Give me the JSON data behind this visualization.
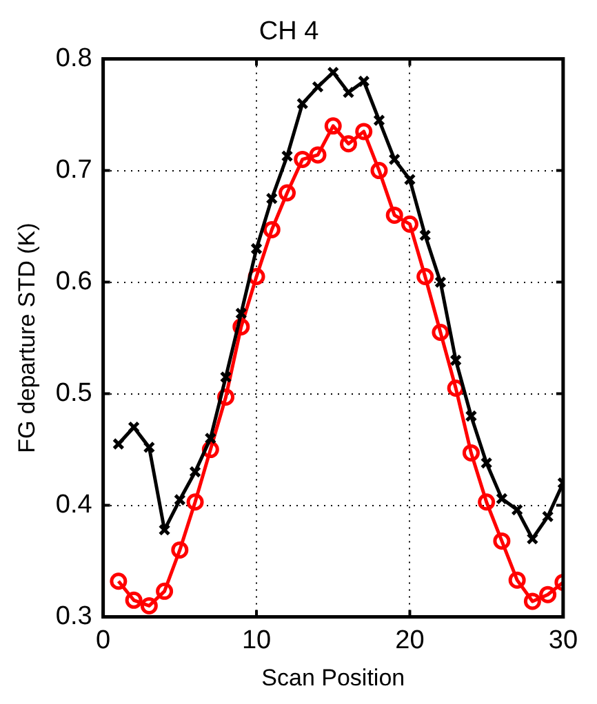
{
  "chart_data": {
    "type": "line",
    "title": "CH 4",
    "xlabel": "Scan Position",
    "ylabel": "FG departure STD (K)",
    "x": [
      1,
      2,
      3,
      4,
      5,
      6,
      7,
      8,
      9,
      10,
      11,
      12,
      13,
      14,
      15,
      16,
      17,
      18,
      19,
      20,
      21,
      22,
      23,
      24,
      25,
      26,
      27,
      28,
      29,
      30
    ],
    "series": [
      {
        "color": "#000000",
        "marker": "cross",
        "values": [
          0.455,
          0.47,
          0.452,
          0.378,
          0.405,
          0.43,
          0.46,
          0.515,
          0.572,
          0.63,
          0.675,
          0.713,
          0.76,
          0.775,
          0.788,
          0.77,
          0.78,
          0.745,
          0.71,
          0.692,
          0.642,
          0.6,
          0.53,
          0.48,
          0.438,
          0.406,
          0.396,
          0.37,
          0.39,
          0.42
        ]
      },
      {
        "color": "#ff0000",
        "marker": "circle",
        "values": [
          0.332,
          0.315,
          0.31,
          0.323,
          0.36,
          0.403,
          0.45,
          0.497,
          0.56,
          0.605,
          0.647,
          0.68,
          0.71,
          0.714,
          0.74,
          0.724,
          0.735,
          0.7,
          0.66,
          0.652,
          0.605,
          0.555,
          0.505,
          0.447,
          0.403,
          0.368,
          0.333,
          0.314,
          0.32,
          0.331
        ]
      }
    ],
    "xlim": [
      0,
      30
    ],
    "xticks": [
      0,
      10,
      20,
      30
    ],
    "ylim": [
      0.3,
      0.8
    ],
    "yticks": [
      0.3,
      0.4,
      0.5,
      0.6,
      0.7,
      0.8
    ],
    "grid": true,
    "legend": false
  }
}
